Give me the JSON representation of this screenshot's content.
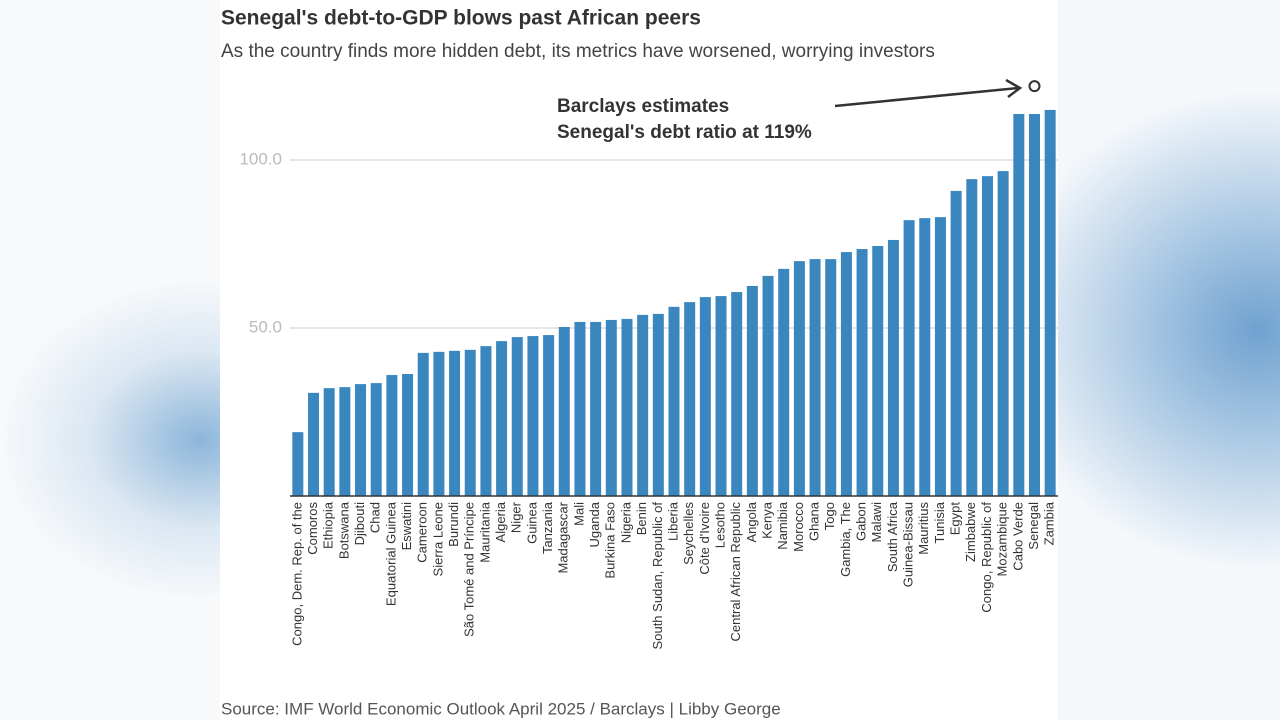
{
  "chart_data": {
    "type": "bar",
    "title": "Senegal's debt-to-GDP blows past African peers",
    "subtitle": "As the country finds more hidden debt, its metrics have worsened, worrying investors",
    "source": "Source: IMF World Economic Outlook April 2025 / Barclays  | Libby George",
    "annotation": {
      "lines": [
        "Barclays estimates",
        "Senegal's debt ratio at 119%"
      ],
      "value": 119,
      "category": "Senegal"
    },
    "color": "#3a87c0",
    "categories": [
      "Congo, Dem. Rep. of the",
      "Comoros",
      "Ethiopia",
      "Botswana",
      "Djibouti",
      "Chad",
      "Equatorial Guinea",
      "Eswatini",
      "Cameroon",
      "Sierra Leone",
      "Burundi",
      "São Tomé and Príncipe",
      "Mauritania",
      "Algeria",
      "Niger",
      "Guinea",
      "Tanzania",
      "Madagascar",
      "Mali",
      "Uganda",
      "Burkina Faso",
      "Nigeria",
      "Benin",
      "South Sudan, Republic of",
      "Liberia",
      "Seychelles",
      "Côte d'Ivoire",
      "Lesotho",
      "Central African Republic",
      "Angola",
      "Kenya",
      "Namibia",
      "Morocco",
      "Ghana",
      "Togo",
      "Gambia, The",
      "Gabon",
      "Malawi",
      "South Africa",
      "Guinea-Bissau",
      "Mauritius",
      "Tunisia",
      "Egypt",
      "Zimbabwe",
      "Congo, Republic of",
      "Mozambique",
      "Cabo Verde",
      "Senegal",
      "Zambia"
    ],
    "values": [
      19,
      30.7,
      32.1,
      32.4,
      33.3,
      33.6,
      36,
      36.3,
      42.6,
      42.9,
      43.2,
      43.5,
      44.6,
      46.1,
      47.3,
      47.6,
      47.9,
      50.3,
      51.8,
      51.8,
      52.4,
      52.7,
      53.9,
      54.2,
      56.3,
      57.7,
      59.2,
      59.5,
      60.7,
      62.5,
      65.5,
      67.6,
      69.9,
      70.5,
      70.5,
      72.6,
      73.5,
      74.4,
      76.2,
      82.1,
      82.7,
      83,
      90.8,
      94.3,
      95.2,
      96.7,
      113.7,
      113.7,
      114.9
    ],
    "ylim": [
      0,
      124
    ],
    "yticks": [
      {
        "value": 50,
        "label": "50.0"
      },
      {
        "value": 100,
        "label": "100.0"
      }
    ],
    "grid": true
  }
}
